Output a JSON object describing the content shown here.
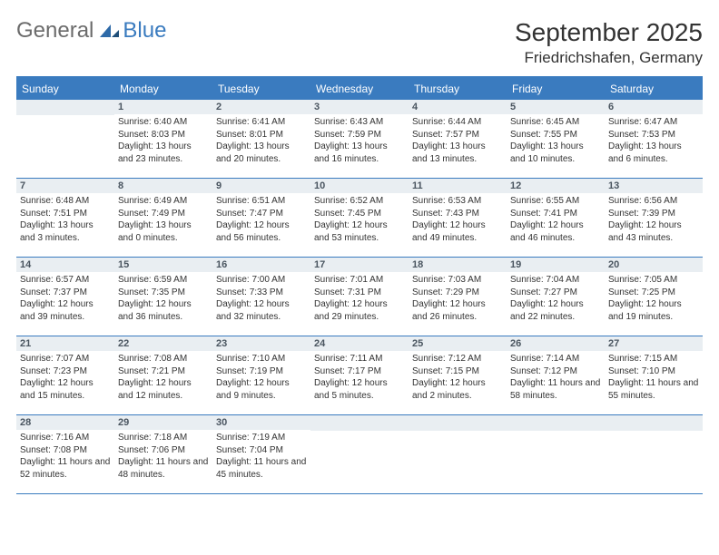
{
  "logo": {
    "text_gray": "General",
    "text_blue": "Blue"
  },
  "title": "September 2025",
  "location": "Friedrichshafen, Germany",
  "colors": {
    "brand_blue": "#3a7bbf",
    "header_row_bg": "#3a7bbf",
    "daynum_bg": "#e9eef2",
    "text": "#333333",
    "logo_gray": "#6b6b6b"
  },
  "typography": {
    "title_fontsize": 28,
    "location_fontsize": 17,
    "weekday_fontsize": 12,
    "daynum_fontsize": 11,
    "body_fontsize": 10
  },
  "layout": {
    "columns": 7,
    "rows": 5,
    "first_day_offset": 1
  },
  "weekdays": [
    "Sunday",
    "Monday",
    "Tuesday",
    "Wednesday",
    "Thursday",
    "Friday",
    "Saturday"
  ],
  "days": [
    {
      "n": 1,
      "sunrise": "6:40 AM",
      "sunset": "8:03 PM",
      "daylight": "13 hours and 23 minutes."
    },
    {
      "n": 2,
      "sunrise": "6:41 AM",
      "sunset": "8:01 PM",
      "daylight": "13 hours and 20 minutes."
    },
    {
      "n": 3,
      "sunrise": "6:43 AM",
      "sunset": "7:59 PM",
      "daylight": "13 hours and 16 minutes."
    },
    {
      "n": 4,
      "sunrise": "6:44 AM",
      "sunset": "7:57 PM",
      "daylight": "13 hours and 13 minutes."
    },
    {
      "n": 5,
      "sunrise": "6:45 AM",
      "sunset": "7:55 PM",
      "daylight": "13 hours and 10 minutes."
    },
    {
      "n": 6,
      "sunrise": "6:47 AM",
      "sunset": "7:53 PM",
      "daylight": "13 hours and 6 minutes."
    },
    {
      "n": 7,
      "sunrise": "6:48 AM",
      "sunset": "7:51 PM",
      "daylight": "13 hours and 3 minutes."
    },
    {
      "n": 8,
      "sunrise": "6:49 AM",
      "sunset": "7:49 PM",
      "daylight": "13 hours and 0 minutes."
    },
    {
      "n": 9,
      "sunrise": "6:51 AM",
      "sunset": "7:47 PM",
      "daylight": "12 hours and 56 minutes."
    },
    {
      "n": 10,
      "sunrise": "6:52 AM",
      "sunset": "7:45 PM",
      "daylight": "12 hours and 53 minutes."
    },
    {
      "n": 11,
      "sunrise": "6:53 AM",
      "sunset": "7:43 PM",
      "daylight": "12 hours and 49 minutes."
    },
    {
      "n": 12,
      "sunrise": "6:55 AM",
      "sunset": "7:41 PM",
      "daylight": "12 hours and 46 minutes."
    },
    {
      "n": 13,
      "sunrise": "6:56 AM",
      "sunset": "7:39 PM",
      "daylight": "12 hours and 43 minutes."
    },
    {
      "n": 14,
      "sunrise": "6:57 AM",
      "sunset": "7:37 PM",
      "daylight": "12 hours and 39 minutes."
    },
    {
      "n": 15,
      "sunrise": "6:59 AM",
      "sunset": "7:35 PM",
      "daylight": "12 hours and 36 minutes."
    },
    {
      "n": 16,
      "sunrise": "7:00 AM",
      "sunset": "7:33 PM",
      "daylight": "12 hours and 32 minutes."
    },
    {
      "n": 17,
      "sunrise": "7:01 AM",
      "sunset": "7:31 PM",
      "daylight": "12 hours and 29 minutes."
    },
    {
      "n": 18,
      "sunrise": "7:03 AM",
      "sunset": "7:29 PM",
      "daylight": "12 hours and 26 minutes."
    },
    {
      "n": 19,
      "sunrise": "7:04 AM",
      "sunset": "7:27 PM",
      "daylight": "12 hours and 22 minutes."
    },
    {
      "n": 20,
      "sunrise": "7:05 AM",
      "sunset": "7:25 PM",
      "daylight": "12 hours and 19 minutes."
    },
    {
      "n": 21,
      "sunrise": "7:07 AM",
      "sunset": "7:23 PM",
      "daylight": "12 hours and 15 minutes."
    },
    {
      "n": 22,
      "sunrise": "7:08 AM",
      "sunset": "7:21 PM",
      "daylight": "12 hours and 12 minutes."
    },
    {
      "n": 23,
      "sunrise": "7:10 AM",
      "sunset": "7:19 PM",
      "daylight": "12 hours and 9 minutes."
    },
    {
      "n": 24,
      "sunrise": "7:11 AM",
      "sunset": "7:17 PM",
      "daylight": "12 hours and 5 minutes."
    },
    {
      "n": 25,
      "sunrise": "7:12 AM",
      "sunset": "7:15 PM",
      "daylight": "12 hours and 2 minutes."
    },
    {
      "n": 26,
      "sunrise": "7:14 AM",
      "sunset": "7:12 PM",
      "daylight": "11 hours and 58 minutes."
    },
    {
      "n": 27,
      "sunrise": "7:15 AM",
      "sunset": "7:10 PM",
      "daylight": "11 hours and 55 minutes."
    },
    {
      "n": 28,
      "sunrise": "7:16 AM",
      "sunset": "7:08 PM",
      "daylight": "11 hours and 52 minutes."
    },
    {
      "n": 29,
      "sunrise": "7:18 AM",
      "sunset": "7:06 PM",
      "daylight": "11 hours and 48 minutes."
    },
    {
      "n": 30,
      "sunrise": "7:19 AM",
      "sunset": "7:04 PM",
      "daylight": "11 hours and 45 minutes."
    }
  ],
  "labels": {
    "sunrise": "Sunrise:",
    "sunset": "Sunset:",
    "daylight": "Daylight:"
  }
}
